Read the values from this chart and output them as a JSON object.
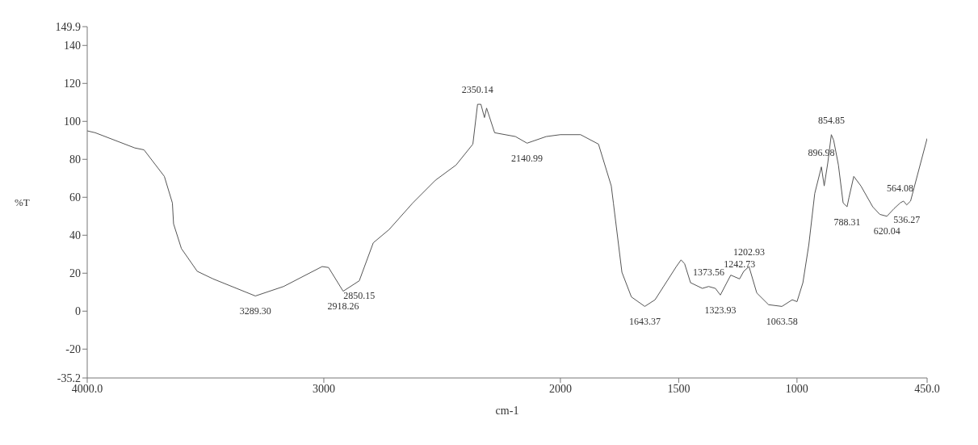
{
  "chart_data": {
    "type": "line",
    "xlabel": "cm-1",
    "ylabel": "%T",
    "xlim": [
      4000,
      450
    ],
    "xticks": [
      {
        "value": 4000,
        "label": "4000.0"
      },
      3000,
      2000,
      1500,
      1000,
      {
        "value": 450,
        "label": "450.0"
      }
    ],
    "ylim": [
      -35.2,
      149.9
    ],
    "yticks": [
      -35.2,
      -20,
      0,
      20,
      40,
      60,
      80,
      100,
      120,
      140,
      149.9
    ],
    "grid": false,
    "legend": false,
    "marker": "none",
    "line_style": "solid",
    "series": [
      {
        "color": "#555555",
        "x": [
          4000,
          3966,
          3799,
          3760,
          3674,
          3640,
          3635,
          3602,
          3535,
          3468,
          3289.3,
          3170,
          3007,
          2980,
          2918.26,
          2850.15,
          2791,
          2724,
          2624,
          2528,
          2441,
          2370,
          2350.14,
          2336,
          2321,
          2312,
          2278,
          2190,
          2140.99,
          2060,
          2000,
          1915,
          1839,
          1785,
          1776,
          1740,
          1700,
          1643.37,
          1600,
          1510,
          1490,
          1475,
          1450,
          1400,
          1373.56,
          1345,
          1323.93,
          1280,
          1242.73,
          1225,
          1202.93,
          1170,
          1120,
          1063.58,
          1020,
          1000,
          975,
          950,
          925,
          896.98,
          885,
          870,
          854.85,
          845,
          825,
          805,
          788.31,
          780,
          760,
          730,
          680,
          650,
          620.04,
          590,
          564.08,
          550,
          536.27,
          520,
          450
        ],
        "values": [
          95,
          94,
          86,
          85,
          71,
          57,
          46,
          33,
          21,
          17,
          8,
          13,
          23.5,
          23,
          10.5,
          16,
          36,
          43,
          57,
          69,
          77,
          88,
          109,
          109,
          102,
          107,
          94,
          92,
          88.5,
          92,
          93,
          93,
          88,
          66,
          57,
          20.5,
          7.5,
          2.5,
          6,
          23.5,
          27,
          25,
          15,
          12,
          13,
          12,
          8.5,
          19,
          17,
          21,
          23.5,
          9.6,
          3.4,
          2.5,
          6,
          5,
          15,
          35,
          62,
          76,
          66,
          78,
          93,
          90,
          77,
          57,
          55,
          60,
          71,
          66,
          55,
          51,
          50,
          54,
          57,
          58,
          56,
          58,
          91
        ]
      }
    ],
    "annotations": [
      {
        "text": "3289.30",
        "x": 3289.3,
        "y": 8
      },
      {
        "text": "2918.26",
        "x": 2918.26,
        "y": 10.5
      },
      {
        "text": "2850.15",
        "x": 2850.15,
        "y": 16
      },
      {
        "text": "2350.14",
        "x": 2350.14,
        "y": 109
      },
      {
        "text": "2140.99",
        "x": 2140.99,
        "y": 88.5
      },
      {
        "text": "1643.37",
        "x": 1643.37,
        "y": 2.5
      },
      {
        "text": "1373.56",
        "x": 1373.56,
        "y": 13
      },
      {
        "text": "1323.93",
        "x": 1323.93,
        "y": 8.5
      },
      {
        "text": "1242.73",
        "x": 1242.73,
        "y": 17
      },
      {
        "text": "1202.93",
        "x": 1202.93,
        "y": 23.5
      },
      {
        "text": "1063.58",
        "x": 1063.58,
        "y": 2.5
      },
      {
        "text": "896.98",
        "x": 896.98,
        "y": 76
      },
      {
        "text": "854.85",
        "x": 854.85,
        "y": 93
      },
      {
        "text": "788.31",
        "x": 788.31,
        "y": 55
      },
      {
        "text": "620.04",
        "x": 620.04,
        "y": 50
      },
      {
        "text": "564.08",
        "x": 564.08,
        "y": 57
      },
      {
        "text": "536.27",
        "x": 536.27,
        "y": 56
      }
    ]
  }
}
